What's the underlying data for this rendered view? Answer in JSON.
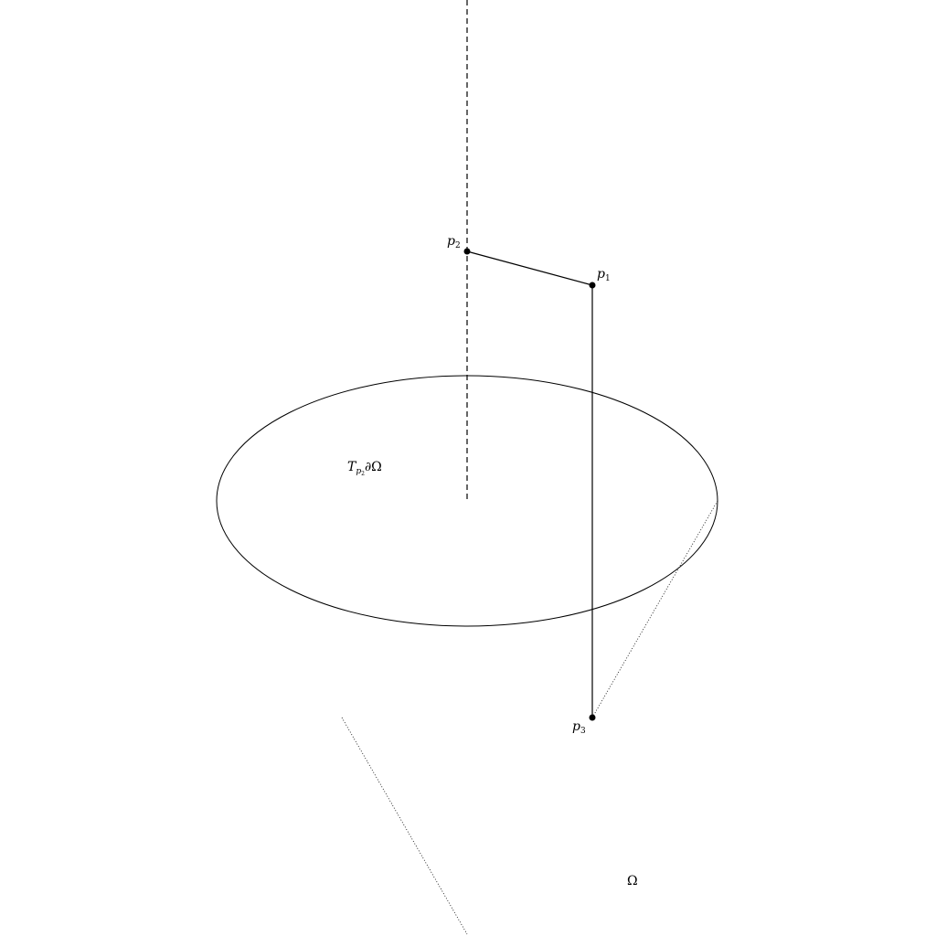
{
  "labels": {
    "p1": {
      "main": "p",
      "sub": "1"
    },
    "p2": {
      "main": "p",
      "sub": "2"
    },
    "p3": {
      "main": "p",
      "sub": "3"
    },
    "tangent_plane": {
      "T": "T",
      "sub_main": "p",
      "sub_sub": "2",
      "rest": "∂Ω"
    },
    "omega": "Ω"
  },
  "colors": {
    "stroke": "#000000",
    "background": "#ffffff"
  }
}
